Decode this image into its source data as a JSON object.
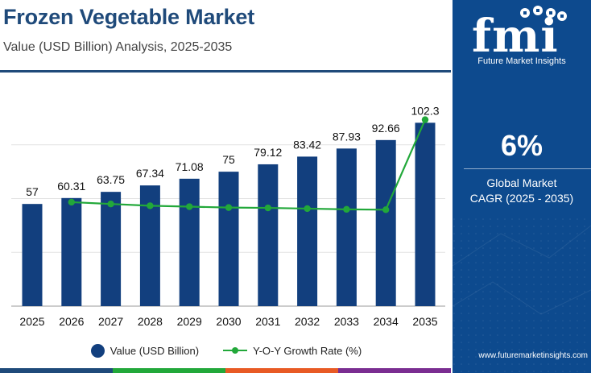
{
  "header": {
    "title": "Frozen Vegetable Market",
    "subtitle": "Value (USD Billion) Analysis, 2025-2035"
  },
  "colors": {
    "bar": "#123f7e",
    "line": "#22a83a",
    "title": "#1f4a7a",
    "panel": "#0d4a8e",
    "grid": "#e2e2e2",
    "strip": [
      "#1f4a7a",
      "#22a83a",
      "#e85a24",
      "#7a2d91"
    ]
  },
  "chart_data": {
    "type": "bar",
    "categories": [
      "2025",
      "2026",
      "2027",
      "2028",
      "2029",
      "2030",
      "2031",
      "2032",
      "2033",
      "2034",
      "2035"
    ],
    "series": [
      {
        "name": "Value (USD Billion)",
        "type": "bar",
        "axis": "left",
        "values": [
          57,
          60.31,
          63.75,
          67.34,
          71.08,
          75,
          79.12,
          83.42,
          87.93,
          92.66,
          102.3
        ],
        "labels": [
          "57",
          "60.31",
          "63.75",
          "67.34",
          "71.08",
          "75",
          "79.12",
          "83.42",
          "87.93",
          "92.66",
          "102.3"
        ]
      },
      {
        "name": "Y-O-Y Growth Rate (%)",
        "type": "line",
        "axis": "right",
        "x": [
          "2026",
          "2027",
          "2028",
          "2029",
          "2030",
          "2031",
          "2032",
          "2033",
          "2034",
          "2035"
        ],
        "values": [
          5.8,
          5.7,
          5.6,
          5.55,
          5.5,
          5.48,
          5.44,
          5.4,
          5.38,
          10.4
        ]
      }
    ],
    "ylim": [
      0,
      120
    ],
    "y2lim": [
      0,
      12
    ],
    "grid": "horizontal",
    "legend_position": "bottom"
  },
  "brand": {
    "logo_text": "fmi",
    "name": "Future Market Insights",
    "website": "www.futuremarketinsights.com"
  },
  "cagr": {
    "value": "6%",
    "label_line1": "Global Market",
    "label_line2": "CAGR (2025 - 2035)"
  }
}
